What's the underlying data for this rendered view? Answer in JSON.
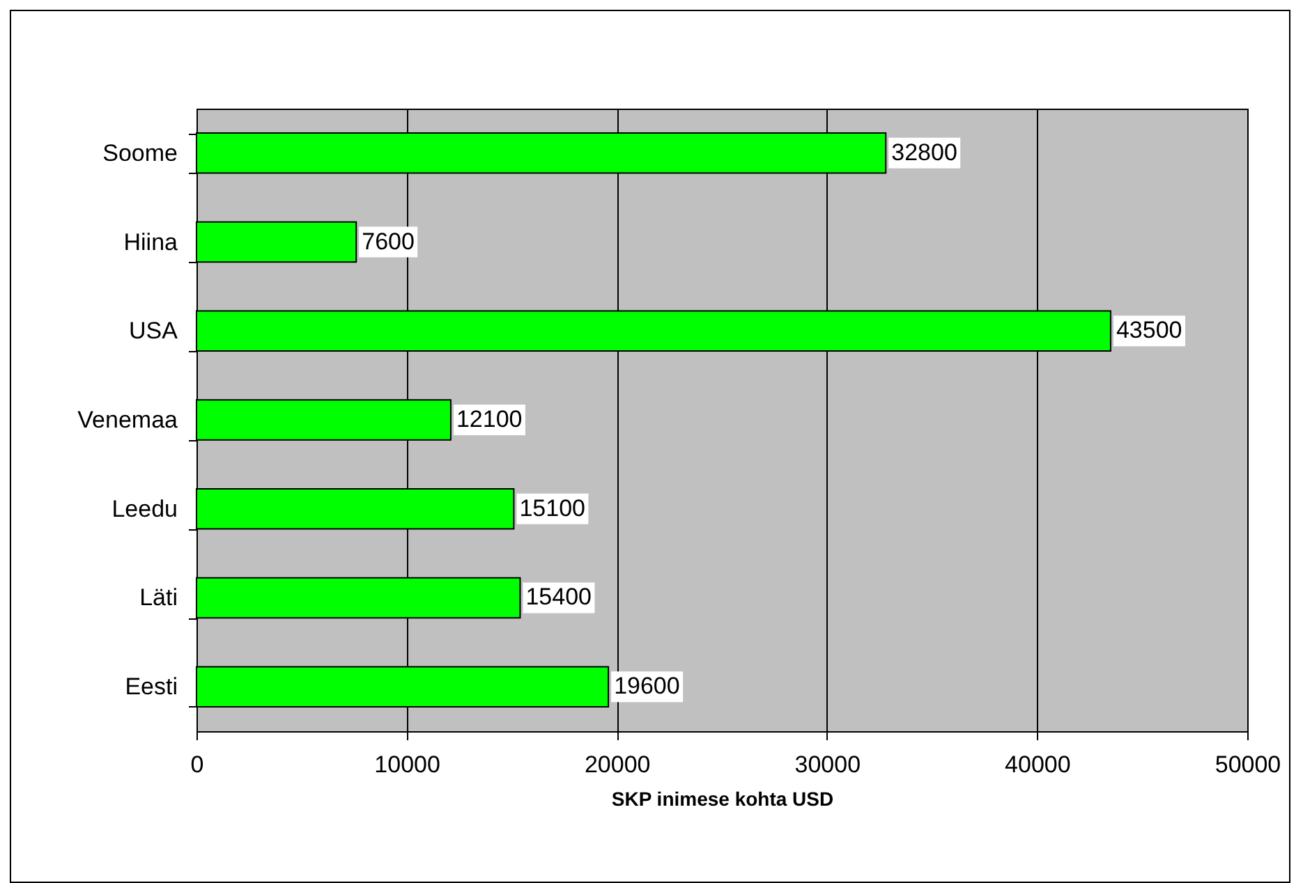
{
  "chart_data": {
    "type": "bar",
    "orientation": "horizontal",
    "xlabel": "SKP inimese kohta USD",
    "categories": [
      "Soome",
      "Hiina",
      "USA",
      "Venemaa",
      "Leedu",
      "Läti",
      "Eesti"
    ],
    "values": [
      32800,
      7600,
      43500,
      12100,
      15100,
      15400,
      19600
    ],
    "color": "#00ff00",
    "xlim": [
      0,
      50000
    ],
    "xticks": [
      0,
      10000,
      20000,
      30000,
      40000,
      50000
    ],
    "grid": "x",
    "data_labels": true
  }
}
